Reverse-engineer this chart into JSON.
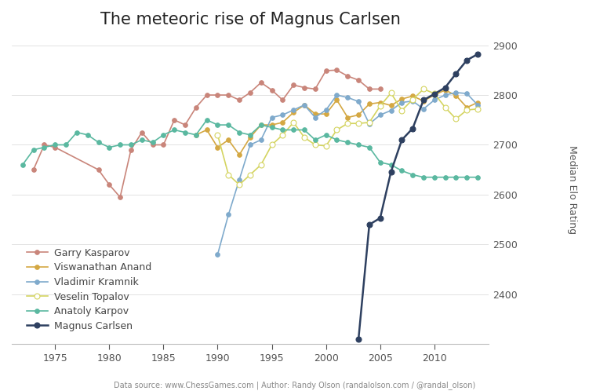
{
  "title": "The meteoric rise of Magnus Carlsen",
  "ylabel": "Median Elo Rating",
  "footnote": "Data source: www.ChessGames.com | Author: Randy Olson (randalolson.com / @randal_olson)",
  "background_color": "#ffffff",
  "xlim": [
    1971,
    2015
  ],
  "ylim": [
    2300,
    2920
  ],
  "yticks": [
    2400,
    2500,
    2600,
    2700,
    2800,
    2900
  ],
  "xticks": [
    1975,
    1980,
    1985,
    1990,
    1995,
    2000,
    2005,
    2010
  ],
  "players": {
    "Garry Kasparov": {
      "color": "#c9857a",
      "filled": true,
      "markersize": 4,
      "lw": 1.2,
      "data": {
        "1973": 2650,
        "1974": 2700,
        "1975": 2695,
        "1979": 2650,
        "1980": 2620,
        "1981": 2595,
        "1982": 2690,
        "1983": 2725,
        "1984": 2700,
        "1985": 2700,
        "1986": 2750,
        "1987": 2740,
        "1988": 2775,
        "1989": 2800,
        "1990": 2800,
        "1991": 2800,
        "1992": 2790,
        "1993": 2805,
        "1994": 2825,
        "1995": 2810,
        "1996": 2790,
        "1997": 2820,
        "1998": 2815,
        "1999": 2812,
        "2000": 2849,
        "2001": 2850,
        "2002": 2838,
        "2003": 2830,
        "2004": 2812,
        "2005": 2812
      }
    },
    "Viswanathan Anand": {
      "color": "#d4a843",
      "filled": true,
      "markersize": 4,
      "lw": 1.2,
      "data": {
        "1988": 2720,
        "1989": 2730,
        "1990": 2695,
        "1991": 2710,
        "1992": 2680,
        "1993": 2715,
        "1994": 2740,
        "1995": 2740,
        "1996": 2745,
        "1997": 2765,
        "1998": 2780,
        "1999": 2762,
        "2000": 2762,
        "2001": 2790,
        "2002": 2755,
        "2003": 2760,
        "2004": 2782,
        "2005": 2785,
        "2006": 2779,
        "2007": 2792,
        "2008": 2798,
        "2009": 2788,
        "2010": 2800,
        "2011": 2810,
        "2012": 2799,
        "2013": 2775,
        "2014": 2785
      }
    },
    "Vladimir Kramnik": {
      "color": "#7faacc",
      "filled": true,
      "markersize": 4,
      "lw": 1.2,
      "data": {
        "1990": 2480,
        "1991": 2560,
        "1992": 2630,
        "1993": 2700,
        "1994": 2710,
        "1995": 2755,
        "1996": 2760,
        "1997": 2770,
        "1998": 2780,
        "1999": 2755,
        "2000": 2770,
        "2001": 2800,
        "2002": 2795,
        "2003": 2787,
        "2004": 2742,
        "2005": 2760,
        "2006": 2769,
        "2007": 2785,
        "2008": 2788,
        "2009": 2772,
        "2010": 2790,
        "2011": 2800,
        "2012": 2805,
        "2013": 2803,
        "2014": 2780
      }
    },
    "Veselin Topalov": {
      "color": "#d4d460",
      "filled": false,
      "markersize": 5,
      "lw": 1.2,
      "data": {
        "1990": 2720,
        "1991": 2640,
        "1992": 2620,
        "1993": 2640,
        "1994": 2660,
        "1995": 2700,
        "1996": 2720,
        "1997": 2745,
        "1998": 2715,
        "1999": 2700,
        "2000": 2698,
        "2001": 2730,
        "2002": 2743,
        "2003": 2743,
        "2004": 2745,
        "2005": 2778,
        "2006": 2804,
        "2007": 2769,
        "2008": 2791,
        "2009": 2812,
        "2010": 2803,
        "2011": 2775,
        "2012": 2752,
        "2013": 2770,
        "2014": 2772
      }
    },
    "Anatoly Karpov": {
      "color": "#5ab8a0",
      "filled": true,
      "markersize": 4,
      "lw": 1.2,
      "data": {
        "1972": 2660,
        "1973": 2690,
        "1974": 2695,
        "1975": 2700,
        "1976": 2700,
        "1977": 2725,
        "1978": 2720,
        "1979": 2705,
        "1980": 2695,
        "1981": 2700,
        "1982": 2700,
        "1983": 2710,
        "1984": 2705,
        "1985": 2720,
        "1986": 2730,
        "1987": 2725,
        "1988": 2720,
        "1989": 2750,
        "1990": 2740,
        "1991": 2740,
        "1992": 2725,
        "1993": 2720,
        "1994": 2740,
        "1995": 2735,
        "1996": 2730,
        "1997": 2730,
        "1998": 2730,
        "1999": 2710,
        "2000": 2720,
        "2001": 2710,
        "2002": 2705,
        "2003": 2700,
        "2004": 2695,
        "2005": 2665,
        "2006": 2660,
        "2007": 2648,
        "2008": 2640,
        "2009": 2635,
        "2010": 2635,
        "2011": 2635,
        "2012": 2635,
        "2013": 2635,
        "2014": 2635
      }
    },
    "Magnus Carlsen": {
      "color": "#2e4060",
      "filled": true,
      "markersize": 5,
      "lw": 1.8,
      "data": {
        "2003": 2310,
        "2004": 2540,
        "2005": 2553,
        "2006": 2646,
        "2007": 2710,
        "2008": 2733,
        "2009": 2790,
        "2010": 2802,
        "2011": 2815,
        "2012": 2843,
        "2013": 2870,
        "2014": 2882
      }
    }
  }
}
